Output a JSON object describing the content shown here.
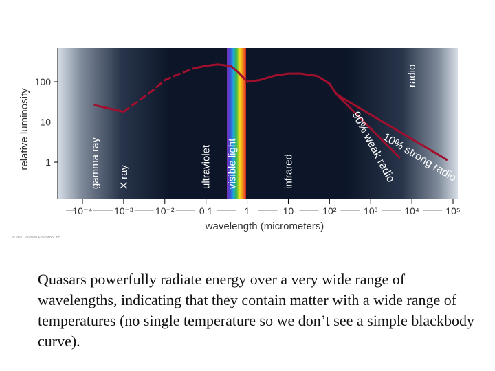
{
  "chart_data": {
    "type": "line",
    "xlabel": "wavelength (micrometers)",
    "ylabel": "relative luminosity",
    "x_scale": "log",
    "y_scale": "log",
    "xlim": [
      0.0001,
      100000
    ],
    "ylim": [
      0.5,
      400
    ],
    "x_tick_labels": [
      "10⁻⁴",
      "10⁻³",
      "10⁻²",
      "0.1",
      "1",
      "10",
      "10²",
      "10³",
      "10⁴",
      "10⁵"
    ],
    "x_tick_values": [
      0.0001,
      0.001,
      0.01,
      0.1,
      1,
      10,
      100,
      1000,
      10000,
      100000
    ],
    "y_tick_labels": [
      "100",
      "10",
      "1"
    ],
    "y_tick_values": [
      100,
      10,
      1
    ],
    "band_labels": [
      {
        "text": "gamma ray",
        "at": 0.0002
      },
      {
        "text": "X ray",
        "at": 0.001
      },
      {
        "text": "ultraviolet",
        "at": 0.1
      },
      {
        "text": "visible light",
        "at": 0.5
      },
      {
        "text": "infrared",
        "at": 10
      },
      {
        "text": "radio",
        "at": 10000
      }
    ],
    "series": [
      {
        "name": "",
        "segments": [
          {
            "style": "solid",
            "points": [
              [
                0.0002,
                26
              ],
              [
                0.001,
                18
              ]
            ]
          },
          {
            "style": "dashed",
            "points": [
              [
                0.001,
                18
              ],
              [
                0.005,
                60
              ],
              [
                0.01,
                110
              ],
              [
                0.02,
                150
              ],
              [
                0.05,
                215
              ]
            ]
          },
          {
            "style": "solid",
            "points": [
              [
                0.05,
                215
              ],
              [
                0.1,
                250
              ],
              [
                0.2,
                270
              ],
              [
                0.4,
                245
              ],
              [
                0.6,
                175
              ],
              [
                1,
                100
              ],
              [
                2,
                110
              ],
              [
                5,
                145
              ],
              [
                10,
                160
              ],
              [
                20,
                160
              ],
              [
                50,
                140
              ],
              [
                100,
                90
              ],
              [
                150,
                48
              ]
            ]
          }
        ]
      }
    ],
    "annotations": [
      {
        "text": "90% weak radio",
        "points": [
          [
            150,
            48
          ],
          [
            5000,
            1.3
          ]
        ]
      },
      {
        "text": "10% strong radio",
        "points": [
          [
            150,
            48
          ],
          [
            70000,
            1.15
          ]
        ]
      }
    ],
    "colors": {
      "curve": "#a0102e",
      "background": "#0b1426",
      "edge_glow": "#c9d3df"
    }
  },
  "copyright": "© 2010 Pearson Education, Inc.",
  "caption": "Quasars powerfully radiate energy over a very wide range of wavelengths, indicating that they contain matter with a wide range of temperatures (no single temperature so we don’t see a simple blackbody curve)."
}
